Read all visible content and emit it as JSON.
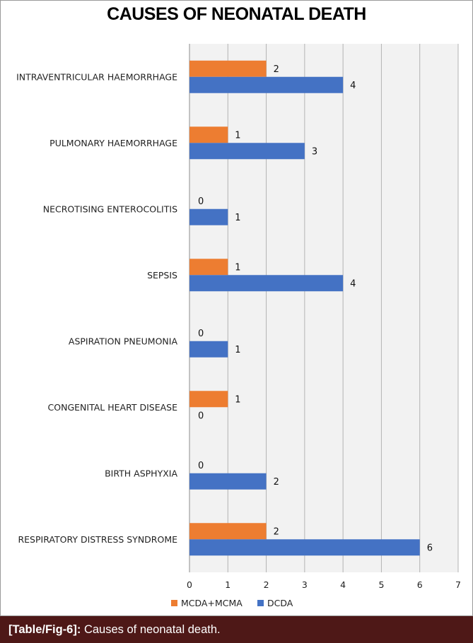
{
  "caption": {
    "tag": "[Table/Fig-6]:",
    "text": " Causes of neonatal death."
  },
  "chart_data": {
    "type": "bar",
    "orientation": "horizontal",
    "title": "CAUSES OF NEONATAL DEATH",
    "categories": [
      "INTRAVENTRICULAR HAEMORRHAGE",
      "PULMONARY HAEMORRHAGE",
      "NECROTISING ENTEROCOLITIS",
      "SEPSIS",
      "ASPIRATION PNEUMONIA",
      "CONGENITAL HEART DISEASE",
      "BIRTH ASPHYXIA",
      "RESPIRATORY DISTRESS SYNDROME"
    ],
    "series": [
      {
        "name": "MCDA+MCMA",
        "color": "#ed7d31",
        "values": [
          2,
          1,
          0,
          1,
          0,
          1,
          0,
          2
        ]
      },
      {
        "name": "DCDA",
        "color": "#4472c4",
        "values": [
          4,
          3,
          1,
          4,
          1,
          0,
          2,
          6
        ]
      }
    ],
    "xlim": [
      0,
      7
    ],
    "xticks": [
      "0",
      "1",
      "2",
      "3",
      "4",
      "5",
      "6",
      "7"
    ],
    "grid": true,
    "data_labels": true,
    "legend": "bottom"
  }
}
